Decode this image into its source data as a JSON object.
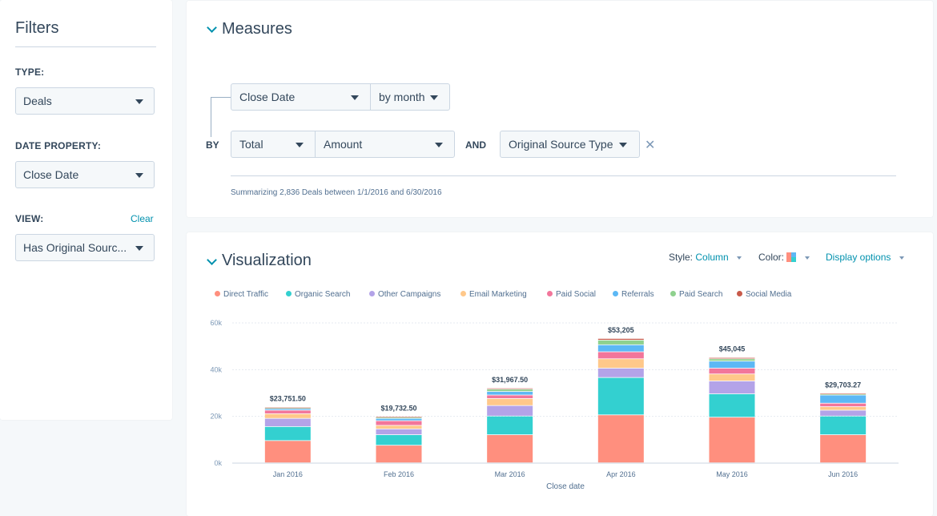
{
  "filters": {
    "title": "Filters",
    "type_label": "TYPE:",
    "type_value": "Deals",
    "date_property_label": "DATE PROPERTY:",
    "date_property_value": "Close Date",
    "view_label": "VIEW:",
    "view_clear": "Clear",
    "view_value": "Has Original Sourc..."
  },
  "measures": {
    "title": "Measures",
    "date_field": "Close Date",
    "period": "by month",
    "by_label": "BY",
    "aggregate": "Total",
    "metric": "Amount",
    "and_label": "AND",
    "breakdown": "Original Source Type",
    "remove_symbol": "✕",
    "summary": "Summarizing 2,836 Deals between 1/1/2016 and 6/30/2016"
  },
  "visualization": {
    "title": "Visualization",
    "style_label": "Style:",
    "style_value": "Column",
    "color_label": "Color:",
    "display_options": "Display options"
  },
  "colors": {
    "accent": "#0091ae",
    "text": "#33475b"
  },
  "chart_data": {
    "type": "bar",
    "stacked": true,
    "xlabel": "Close date",
    "ylabel": "",
    "ylim": [
      0,
      60000
    ],
    "yticks": [
      "0k",
      "20k",
      "40k",
      "60k"
    ],
    "categories": [
      "Jan 2016",
      "Feb 2016",
      "Mar 2016",
      "Apr 2016",
      "May 2016",
      "Jun 2016"
    ],
    "totals_labels": [
      "$23,751.50",
      "$19,732.50",
      "$31,967.50",
      "$53,205",
      "$45,045",
      "$29,703.27"
    ],
    "totals": [
      23751.5,
      19732.5,
      31967.5,
      53205,
      45045,
      29703.27
    ],
    "grid": true,
    "legend_position": "top-left",
    "series": [
      {
        "name": "Direct Traffic",
        "color": "#ff8f7e",
        "values": [
          9500,
          7500,
          12000,
          20500,
          19500,
          12000
        ]
      },
      {
        "name": "Organic Search",
        "color": "#33d0d0",
        "values": [
          6000,
          4500,
          8000,
          16000,
          10000,
          8000
        ]
      },
      {
        "name": "Other Campaigns",
        "color": "#b3a3e8",
        "values": [
          3500,
          2500,
          4500,
          4000,
          5500,
          2500
        ]
      },
      {
        "name": "Email Marketing",
        "color": "#ffc88a",
        "values": [
          2000,
          1500,
          3000,
          4000,
          3000,
          1500
        ]
      },
      {
        "name": "Paid Social",
        "color": "#f2769b",
        "values": [
          1500,
          2000,
          1500,
          3000,
          2500,
          1500
        ]
      },
      {
        "name": "Referrals",
        "color": "#5cb8f5",
        "values": [
          700,
          1000,
          1500,
          3000,
          3000,
          3500
        ]
      },
      {
        "name": "Paid Search",
        "color": "#8fd18e",
        "values": [
          400,
          500,
          1000,
          2000,
          1000,
          500
        ]
      },
      {
        "name": "Social Media",
        "color": "#c85a4a",
        "values": [
          151.5,
          232.5,
          467.5,
          705,
          545,
          203.27
        ]
      }
    ]
  }
}
